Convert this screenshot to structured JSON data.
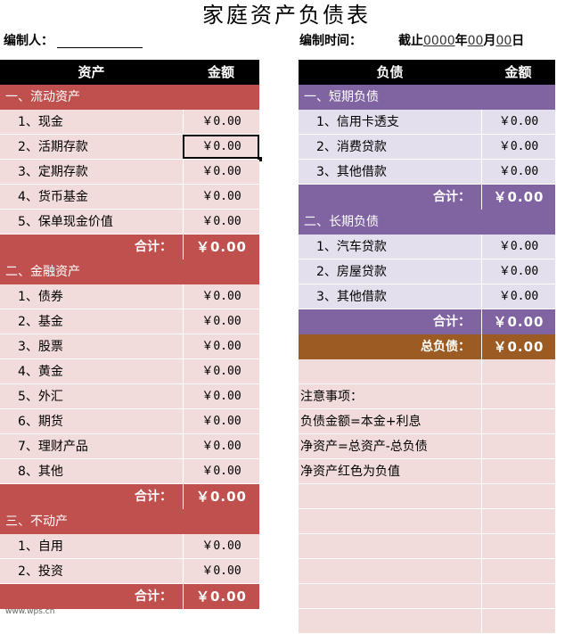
{
  "title": "家庭资产负债表",
  "meta": {
    "preparer_label": "编制人：",
    "time_label": "编制时间：",
    "date_prefix": "截止",
    "year": "0000",
    "year_suffix": "年",
    "month": "00",
    "month_suffix": "月",
    "day": "00",
    "day_suffix": "日"
  },
  "assets": {
    "header": {
      "name": "资产",
      "amount": "金额"
    },
    "sections": [
      {
        "title": "一、流动资产",
        "items": [
          {
            "label": "1、现金",
            "value": "￥0.00"
          },
          {
            "label": "2、活期存款",
            "value": "￥0.00"
          },
          {
            "label": "3、定期存款",
            "value": "￥0.00"
          },
          {
            "label": "4、货币基金",
            "value": "￥0.00"
          },
          {
            "label": "5、保单现金价值",
            "value": "￥0.00"
          }
        ],
        "total_label": "合计：",
        "total_value": "￥0.00"
      },
      {
        "title": "二、金融资产",
        "items": [
          {
            "label": "1、债券",
            "value": "￥0.00"
          },
          {
            "label": "2、基金",
            "value": "￥0.00"
          },
          {
            "label": "3、股票",
            "value": "￥0.00"
          },
          {
            "label": "4、黄金",
            "value": "￥0.00"
          },
          {
            "label": "5、外汇",
            "value": "￥0.00"
          },
          {
            "label": "6、期货",
            "value": "￥0.00"
          },
          {
            "label": "7、理财产品",
            "value": "￥0.00"
          },
          {
            "label": "8、其他",
            "value": "￥0.00"
          }
        ],
        "total_label": "合计：",
        "total_value": "￥0.00"
      },
      {
        "title": "三、不动产",
        "items": [
          {
            "label": "1、自用",
            "value": "￥0.00"
          },
          {
            "label": "2、投资",
            "value": "￥0.00"
          }
        ],
        "total_label": "合计：",
        "total_value": "￥0.00"
      }
    ]
  },
  "liabilities": {
    "header": {
      "name": "负债",
      "amount": "金额"
    },
    "sections": [
      {
        "title": "一、短期负债",
        "items": [
          {
            "label": "1、信用卡透支",
            "value": "￥0.00"
          },
          {
            "label": "2、消费贷款",
            "value": "￥0.00"
          },
          {
            "label": "3、其他借款",
            "value": "￥0.00"
          }
        ],
        "total_label": "合计：",
        "total_value": "￥0.00"
      },
      {
        "title": "二、长期负债",
        "items": [
          {
            "label": "1、汽车贷款",
            "value": "￥0.00"
          },
          {
            "label": "2、房屋贷款",
            "value": "￥0.00"
          },
          {
            "label": "3、其他借款",
            "value": "￥0.00"
          }
        ],
        "total_label": "合计：",
        "total_value": "￥0.00"
      }
    ],
    "grand_total_label": "总负债：",
    "grand_total_value": "￥0.00"
  },
  "notes": {
    "heading": "注意事项：",
    "lines": [
      "负债金额=本金+利息",
      "净资产=总资产-总负债",
      "净资产红色为负值"
    ]
  },
  "watermark": "www.wps.cn",
  "colors": {
    "asset_accent": "#c0504d",
    "liability_accent": "#8064a2",
    "grand_total": "#9c5b22",
    "asset_row_bg": "#f2dcdb",
    "liability_row_bg": "#e4dfec"
  }
}
